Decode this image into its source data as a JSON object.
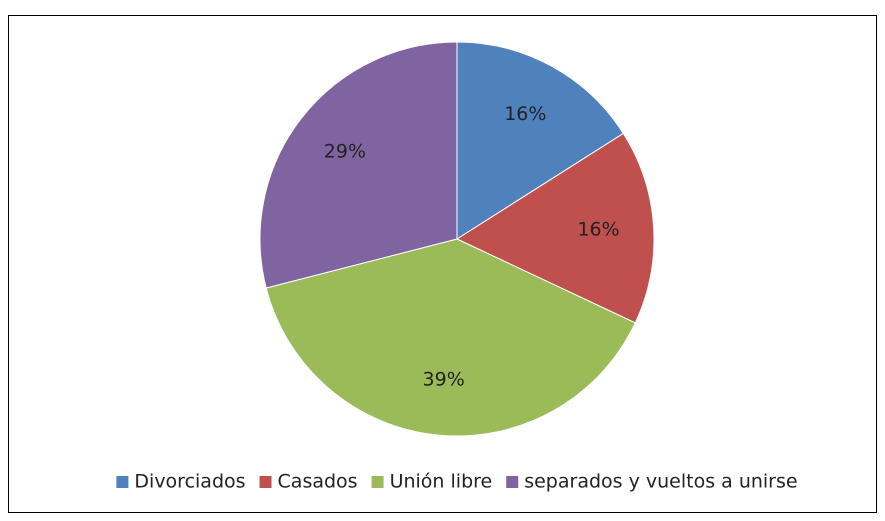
{
  "chart_data": {
    "type": "pie",
    "categories": [
      "Divorciados",
      "Casados",
      "Unión libre",
      "separados y vueltos a unirse"
    ],
    "values": [
      16,
      16,
      39,
      29
    ],
    "value_labels": [
      "16%",
      "16%",
      "39%",
      "29%"
    ],
    "colors": [
      "#4f81bd",
      "#c0504d",
      "#9bbb59",
      "#8064a2"
    ],
    "legend": "bottom"
  }
}
